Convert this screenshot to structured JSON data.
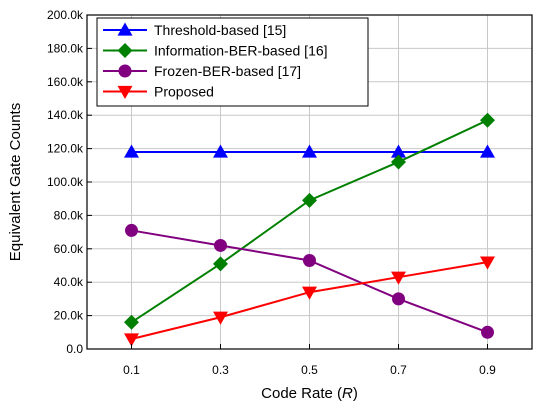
{
  "chart_data": {
    "type": "line",
    "xlabel": "Code Rate (",
    "xlabel_var": "R",
    "xlabel_end": ")",
    "ylabel": "Equivalent Gate Counts",
    "x": [
      0.1,
      0.3,
      0.5,
      0.7,
      0.9
    ],
    "x_tick_labels": [
      "0.1",
      "0.3",
      "0.5",
      "0.7",
      "0.9"
    ],
    "xlim": [
      0.0,
      1.0
    ],
    "ylim": [
      0,
      200000
    ],
    "y_ticks": [
      0,
      20000,
      40000,
      60000,
      80000,
      100000,
      120000,
      140000,
      160000,
      180000,
      200000
    ],
    "y_tick_labels": [
      "0.0",
      "20.0k",
      "40.0k",
      "60.0k",
      "80.0k",
      "100.0k",
      "120.0k",
      "140.0k",
      "160.0k",
      "180.0k",
      "200.0k"
    ],
    "grid": true,
    "legend_position": "top-left",
    "series": [
      {
        "name": "Threshold-based [15]",
        "color": "#0000ff",
        "marker": "triangle-up",
        "values": [
          118000,
          118000,
          118000,
          118000,
          118000
        ]
      },
      {
        "name": "Information-BER-based [16]",
        "color": "#008000",
        "marker": "diamond",
        "values": [
          16000,
          51000,
          89000,
          112000,
          137000
        ]
      },
      {
        "name": "Frozen-BER-based [17]",
        "color": "#800080",
        "marker": "circle",
        "values": [
          71000,
          62000,
          53000,
          30000,
          10000
        ]
      },
      {
        "name": "Proposed",
        "color": "#ff0000",
        "marker": "triangle-down",
        "values": [
          6000,
          19000,
          34000,
          43000,
          52000
        ]
      }
    ]
  }
}
